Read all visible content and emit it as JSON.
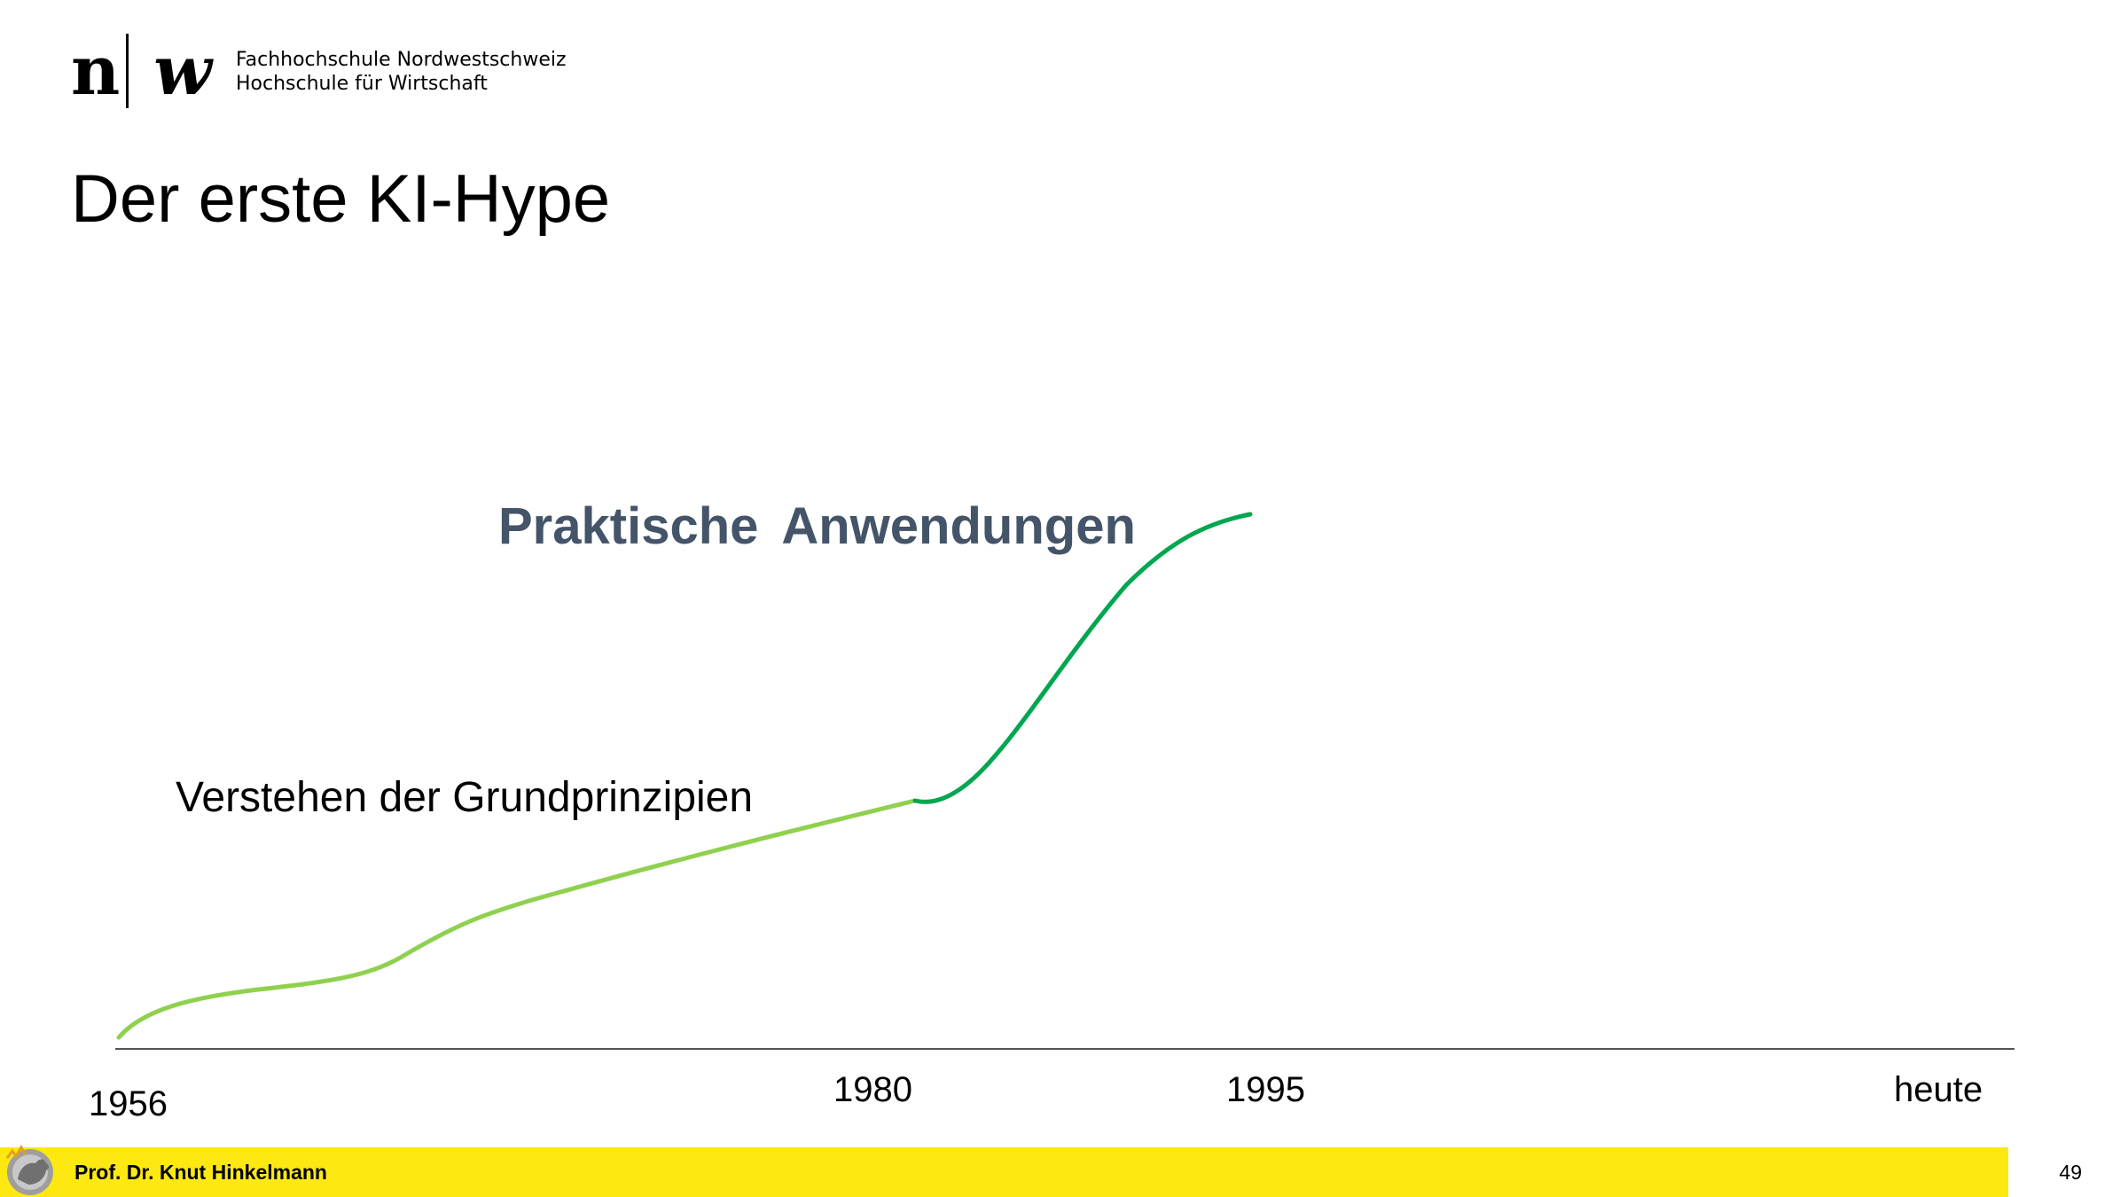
{
  "logo": {
    "mark_n": "n",
    "mark_w": "w"
  },
  "header": {
    "institution_line1": "Fachhochschule Nordwestschweiz",
    "institution_line2": "Hochschule für Wirtschaft"
  },
  "slide": {
    "title": "Der erste KI-Hype",
    "labels": {
      "upper": "Praktische  Anwendungen",
      "lower": "Verstehen der Grundprinzipien"
    },
    "timeline": {
      "ticks": [
        "1956",
        "1980",
        "1995",
        "heute"
      ]
    },
    "colors": {
      "phase1": "#8fd14f",
      "phase2": "#00a650",
      "label_upper": "#445469"
    }
  },
  "footer": {
    "author": "Prof. Dr. Knut Hinkelmann",
    "page_number": "49",
    "background": "#fde812"
  }
}
